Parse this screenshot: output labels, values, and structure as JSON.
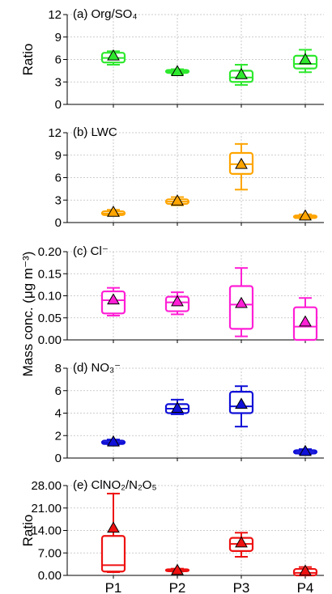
{
  "chart_data": {
    "type": "box",
    "categories": [
      "P1",
      "P2",
      "P3",
      "P4"
    ],
    "shared_ylabel": "Mass conc. (μg m⁻³)",
    "panels": [
      {
        "id": "a",
        "title": "(a) Org/SO₄",
        "ylabel": "Ratio",
        "ylim": [
          0,
          12
        ],
        "yticks": [
          0,
          3,
          6,
          9,
          12
        ],
        "tick_format": "int",
        "color": "#2ee82e",
        "boxes": [
          {
            "min": 5.3,
            "q1": 5.6,
            "median": 6.2,
            "q3": 6.9,
            "max": 7.1,
            "mean": 6.5
          },
          {
            "min": 4.0,
            "q1": 4.2,
            "median": 4.4,
            "q3": 4.6,
            "max": 4.7,
            "mean": 4.4
          },
          {
            "min": 2.6,
            "q1": 3.0,
            "median": 3.6,
            "q3": 4.5,
            "max": 5.3,
            "mean": 4.0
          },
          {
            "min": 4.3,
            "q1": 4.8,
            "median": 5.4,
            "q3": 6.5,
            "max": 7.3,
            "mean": 6.0
          }
        ]
      },
      {
        "id": "b",
        "title": "(b) LWC",
        "ylabel": "",
        "ylim": [
          0,
          12
        ],
        "yticks": [
          0,
          3,
          6,
          9,
          12
        ],
        "tick_format": "int",
        "color": "#ffa500",
        "boxes": [
          {
            "min": 0.9,
            "q1": 1.0,
            "median": 1.2,
            "q3": 1.5,
            "max": 1.7,
            "mean": 1.4
          },
          {
            "min": 2.3,
            "q1": 2.5,
            "median": 2.8,
            "q3": 3.1,
            "max": 3.4,
            "mean": 2.9
          },
          {
            "min": 4.4,
            "q1": 6.5,
            "median": 7.8,
            "q3": 9.3,
            "max": 10.5,
            "mean": 7.8
          },
          {
            "min": 0.5,
            "q1": 0.6,
            "median": 0.8,
            "q3": 0.95,
            "max": 1.1,
            "mean": 0.9
          }
        ]
      },
      {
        "id": "c",
        "title": "(c) Cl⁻",
        "ylabel": "",
        "ylim": [
          0,
          0.2
        ],
        "yticks": [
          0.0,
          0.05,
          0.1,
          0.15,
          0.2
        ],
        "tick_format": "2dp",
        "color": "#ff1fd5",
        "boxes": [
          {
            "min": 0.055,
            "q1": 0.06,
            "median": 0.09,
            "q3": 0.11,
            "max": 0.118,
            "mean": 0.091
          },
          {
            "min": 0.058,
            "q1": 0.065,
            "median": 0.085,
            "q3": 0.098,
            "max": 0.108,
            "mean": 0.087
          },
          {
            "min": 0.008,
            "q1": 0.025,
            "median": 0.08,
            "q3": 0.122,
            "max": 0.163,
            "mean": 0.083
          },
          {
            "min": 0.0,
            "q1": 0.0,
            "median": 0.03,
            "q3": 0.074,
            "max": 0.095,
            "mean": 0.041
          }
        ]
      },
      {
        "id": "d",
        "title": "(d) NO₃⁻",
        "ylabel": "",
        "ylim": [
          0,
          8
        ],
        "yticks": [
          0,
          2,
          4,
          6,
          8
        ],
        "tick_format": "int",
        "color": "#1010d8",
        "boxes": [
          {
            "min": 1.2,
            "q1": 1.25,
            "median": 1.4,
            "q3": 1.55,
            "max": 1.65,
            "mean": 1.45
          },
          {
            "min": 3.9,
            "q1": 4.0,
            "median": 4.4,
            "q3": 4.8,
            "max": 5.2,
            "mean": 4.45
          },
          {
            "min": 2.8,
            "q1": 4.0,
            "median": 4.6,
            "q3": 5.9,
            "max": 6.4,
            "mean": 4.8
          },
          {
            "min": 0.35,
            "q1": 0.4,
            "median": 0.55,
            "q3": 0.7,
            "max": 0.8,
            "mean": 0.6
          }
        ]
      },
      {
        "id": "e",
        "title": "(e) ClNO₂/N₂O₅",
        "ylabel": "Ratio",
        "ylim": [
          0,
          28
        ],
        "yticks": [
          0,
          7,
          14,
          21,
          28
        ],
        "tick_format": "2dp",
        "color": "#ee1111",
        "boxes": [
          {
            "min": 1.0,
            "q1": 1.2,
            "median": 3.2,
            "q3": 12.3,
            "max": 25.5,
            "mean": 14.8
          },
          {
            "min": 1.2,
            "q1": 1.3,
            "median": 1.5,
            "q3": 1.9,
            "max": 2.1,
            "mean": 1.6
          },
          {
            "min": 5.8,
            "q1": 7.6,
            "median": 9.8,
            "q3": 11.7,
            "max": 13.3,
            "mean": 10.2
          },
          {
            "min": 0.0,
            "q1": 0.0,
            "median": 0.8,
            "q3": 2.0,
            "max": 2.6,
            "mean": 1.4
          }
        ]
      }
    ]
  }
}
